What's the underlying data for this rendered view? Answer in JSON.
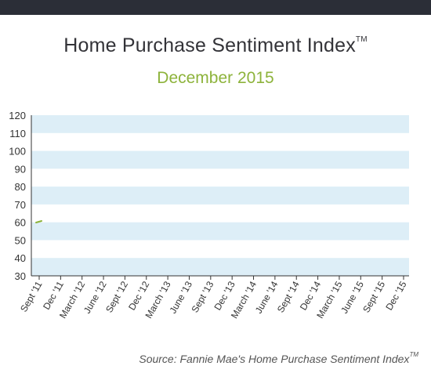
{
  "header": {
    "title": "Home Purchase Sentiment Index",
    "title_mark": "TM",
    "subtitle": "December 2015"
  },
  "footer": {
    "source": "Source: Fannie Mae's Home Purchase Sentiment Index",
    "source_mark": "TM"
  },
  "chart_data": {
    "type": "line",
    "title": "Home Purchase Sentiment Index",
    "subtitle": "December 2015",
    "xlabel": "",
    "ylabel": "",
    "ylim": [
      30,
      120
    ],
    "yticks": [
      30,
      40,
      50,
      60,
      70,
      80,
      90,
      100,
      110,
      120
    ],
    "categories": [
      "Sept '11",
      "Dec '11",
      "March '12",
      "June '12",
      "Sept '12",
      "Dec '12",
      "March '13",
      "June '13",
      "Sept '13",
      "Dec '13",
      "March '14",
      "June '14",
      "Sept '14",
      "Dec '14",
      "March '15",
      "June '15",
      "Sept '15",
      "Dec '15"
    ],
    "series": [
      {
        "values": [
          60.3,
          null,
          null,
          null,
          null,
          null,
          null,
          null,
          null,
          null,
          null,
          null,
          null,
          null,
          null,
          null,
          null,
          null
        ]
      }
    ],
    "grid": "alternating horizontal bands",
    "colors": {
      "band": "#ddeef7",
      "line": "#8db33b",
      "axis": "#333333",
      "text": "#333333"
    }
  }
}
